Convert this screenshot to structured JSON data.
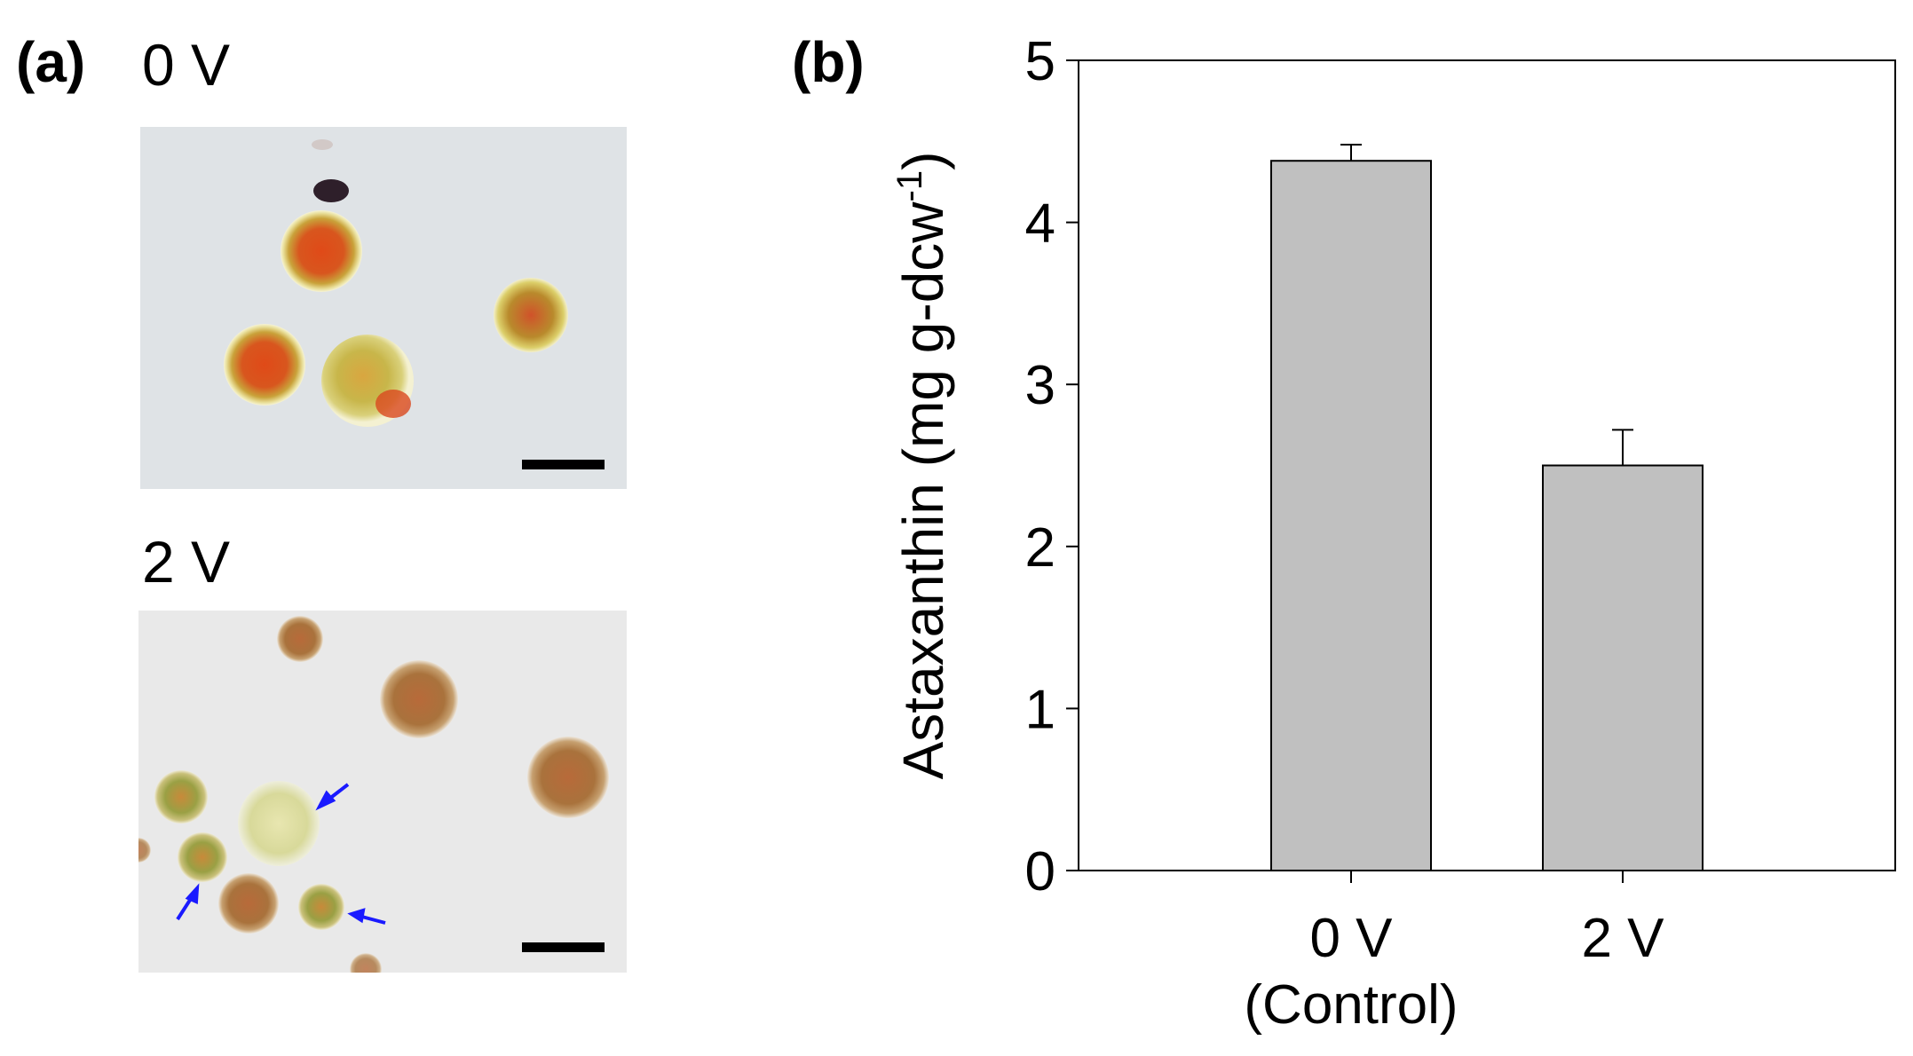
{
  "panel_a": {
    "label": "(a)",
    "top_image_label": "0 V",
    "bottom_image_label": "2 V"
  },
  "panel_b": {
    "label": "(b)"
  },
  "colors": {
    "bar_fill": "#c0c0c0",
    "arrow": "#1a1aff",
    "scale_bar": "#000000"
  },
  "chart_data": {
    "type": "bar",
    "categories": [
      "0 V\n(Control)",
      "2 V"
    ],
    "category_lines": [
      [
        "0 V",
        "(Control)"
      ],
      [
        "2 V"
      ]
    ],
    "values": [
      4.38,
      2.5
    ],
    "errors": [
      0.1,
      0.22
    ],
    "title": "",
    "xlabel": "",
    "ylabel": "Astaxanthin (mg g-dcw",
    "ylabel_superscript": "-1",
    "ylabel_close": ")",
    "ylim": [
      0,
      5
    ],
    "yticks": [
      0,
      1,
      2,
      3,
      4,
      5
    ],
    "grid": false
  }
}
